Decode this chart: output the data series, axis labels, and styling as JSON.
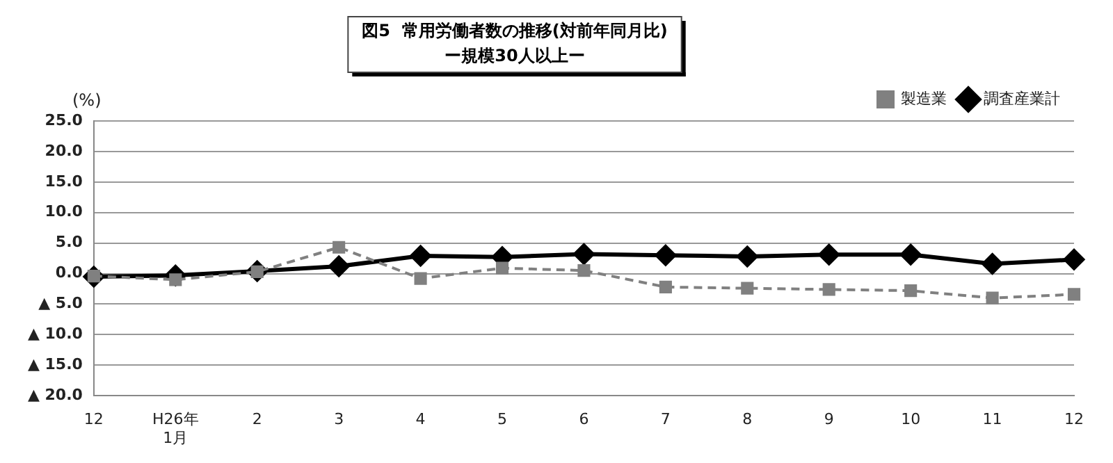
{
  "chart_data": {
    "type": "line",
    "title": "図5  常用労働者数の推移(対前年同月比)",
    "subtitle": "ー規模30人以上ー",
    "ylabel": "(%)",
    "categories": [
      "12",
      "H26年\n1月",
      "2",
      "3",
      "4",
      "5",
      "6",
      "7",
      "8",
      "9",
      "10",
      "11",
      "12"
    ],
    "series": [
      {
        "name": "調査産業計",
        "color": "#000000",
        "marker": "diamond",
        "line_style": "solid",
        "values": [
          -0.5,
          -0.3,
          0.4,
          1.2,
          2.9,
          2.7,
          3.2,
          3.0,
          2.8,
          3.1,
          3.1,
          1.6,
          2.3
        ]
      },
      {
        "name": "製造業",
        "color": "#808080",
        "marker": "square",
        "line_style": "dashed",
        "values": [
          -0.4,
          -1.0,
          0.3,
          4.3,
          -0.8,
          0.9,
          0.5,
          -2.2,
          -2.4,
          -2.6,
          -2.8,
          -4.0,
          -3.4
        ]
      }
    ],
    "ylim": [
      -20,
      25
    ],
    "yticks": [
      {
        "value": -20,
        "label": "▲ 20.0"
      },
      {
        "value": -15,
        "label": "▲ 15.0"
      },
      {
        "value": -10,
        "label": "▲ 10.0"
      },
      {
        "value": -5,
        "label": "▲ 5.0"
      },
      {
        "value": 0,
        "label": "0.0"
      },
      {
        "value": 5,
        "label": "5.0"
      },
      {
        "value": 10,
        "label": "10.0"
      },
      {
        "value": 15,
        "label": "15.0"
      },
      {
        "value": 20,
        "label": "20.0"
      },
      {
        "value": 25,
        "label": "25.0"
      }
    ],
    "grid": "y",
    "legend": "top right"
  }
}
